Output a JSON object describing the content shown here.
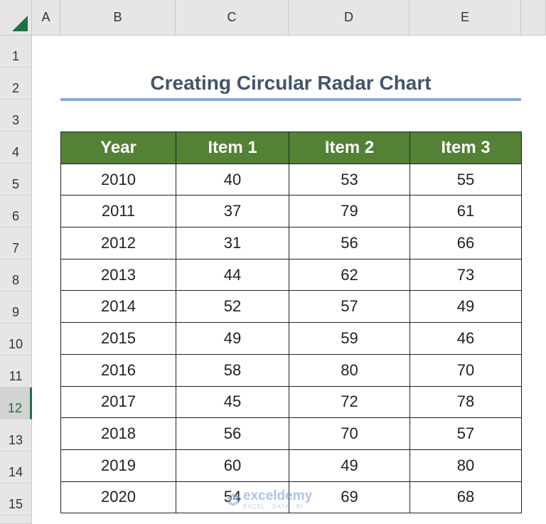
{
  "columns": [
    "A",
    "B",
    "C",
    "D",
    "E"
  ],
  "rows": [
    "1",
    "2",
    "3",
    "4",
    "5",
    "6",
    "7",
    "8",
    "9",
    "10",
    "11",
    "12",
    "13",
    "14",
    "15"
  ],
  "active_row": "12",
  "title": "Creating Circular Radar Chart",
  "table": {
    "headers": [
      "Year",
      "Item 1",
      "Item 2",
      "Item 3"
    ],
    "rows": [
      [
        "2010",
        "40",
        "53",
        "55"
      ],
      [
        "2011",
        "37",
        "79",
        "61"
      ],
      [
        "2012",
        "31",
        "56",
        "66"
      ],
      [
        "2013",
        "44",
        "62",
        "73"
      ],
      [
        "2014",
        "52",
        "57",
        "49"
      ],
      [
        "2015",
        "49",
        "59",
        "46"
      ],
      [
        "2016",
        "58",
        "80",
        "70"
      ],
      [
        "2017",
        "45",
        "72",
        "78"
      ],
      [
        "2018",
        "56",
        "70",
        "57"
      ],
      [
        "2019",
        "60",
        "49",
        "80"
      ],
      [
        "2020",
        "54",
        "69",
        "68"
      ]
    ]
  },
  "watermark": {
    "name": "exceldemy",
    "tagline": "EXCEL · DATA · BI"
  },
  "colors": {
    "header_fill": "#538135",
    "title_text": "#44546a",
    "title_underline": "#8ea9db"
  }
}
